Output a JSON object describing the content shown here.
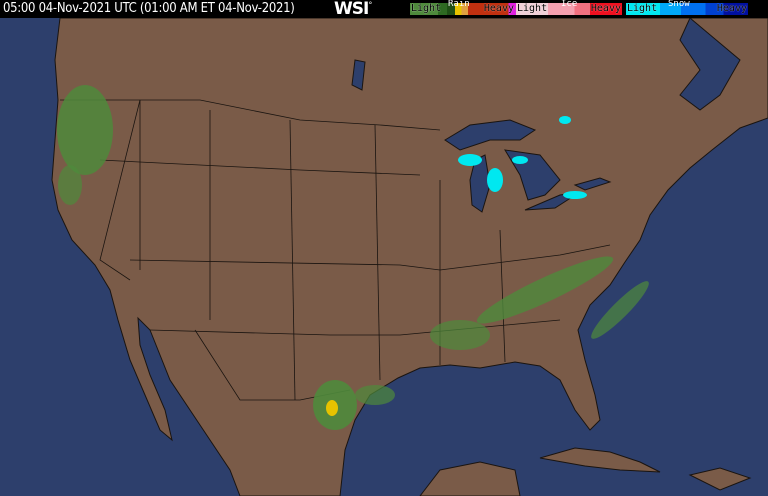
{
  "header": {
    "timestamp": "05:00 04-Nov-2021 UTC  (01:00 AM ET 04-Nov-2021)",
    "logo": "WSI",
    "logo_mark": "°"
  },
  "legend": {
    "rain": {
      "title": "Rain",
      "light": "Light",
      "heavy": "Heavy",
      "colors": [
        "#4f8a3c",
        "#2e6a22",
        "#1f4f16",
        "#e6c200",
        "#e0a040",
        "#d04020",
        "#b01010",
        "#e020e0"
      ]
    },
    "ice": {
      "title": "Ice",
      "light": "Light",
      "heavy": "Heavy",
      "colors": [
        "#f0d0d8",
        "#f4a0b0",
        "#f07080",
        "#f04050",
        "#f01020"
      ]
    },
    "snow": {
      "title": "Snow",
      "light": "Light",
      "heavy": "Heavy",
      "colors": [
        "#00e8f0",
        "#00a8f8",
        "#0070f0",
        "#0040d0",
        "#0010a0"
      ]
    }
  },
  "colors": {
    "ocean": "#2d3f6c",
    "land": "#7a5b48",
    "border": "#1a1410",
    "lake": "#2d3f6c"
  }
}
